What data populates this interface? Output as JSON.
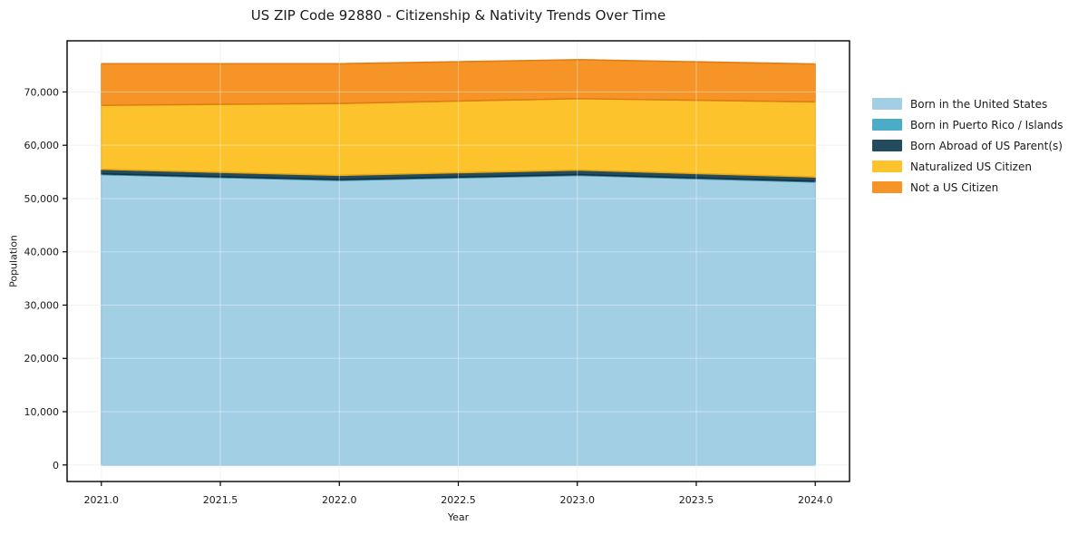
{
  "page": {
    "background": "#ffffff"
  },
  "chart_data": {
    "type": "area",
    "stacked": true,
    "title": "US ZIP Code 92880 - Citizenship & Nativity Trends Over Time",
    "xlabel": "Year",
    "ylabel": "Population",
    "x": [
      2021,
      2022,
      2023,
      2024
    ],
    "series": [
      {
        "name": "Born in the United States",
        "color": "#a3cfe4",
        "edge": "#7eb7d2",
        "values": [
          54500,
          53400,
          54350,
          53100
        ]
      },
      {
        "name": "Born in Puerto Rico / Islands",
        "color": "#4aacc6",
        "edge": "#3691ab",
        "values": [
          150,
          150,
          150,
          150
        ]
      },
      {
        "name": "Born Abroad of US Parent(s)",
        "color": "#234b5e",
        "edge": "#162f3c",
        "values": [
          850,
          800,
          850,
          800
        ]
      },
      {
        "name": "Naturalized US Citizen",
        "color": "#fcc32d",
        "edge": "#e6a914",
        "values": [
          12000,
          13500,
          13400,
          14100
        ]
      },
      {
        "name": "Not a US Citizen",
        "color": "#f79428",
        "edge": "#e07d12",
        "values": [
          7800,
          7450,
          7300,
          7100
        ]
      }
    ],
    "totals_by_year": [
      75300,
      75300,
      76050,
      75250
    ],
    "xticks": [
      2021.0,
      2021.5,
      2022.0,
      2022.5,
      2023.0,
      2023.5,
      2024.0
    ],
    "yticks": [
      0,
      10000,
      20000,
      30000,
      40000,
      50000,
      60000,
      70000
    ],
    "xtick_labels": [
      "2021.0",
      "2021.5",
      "2022.0",
      "2022.5",
      "2023.0",
      "2023.5",
      "2024.0"
    ],
    "ytick_labels": [
      "0",
      "10,000",
      "20,000",
      "30,000",
      "40,000",
      "50,000",
      "60,000",
      "70,000"
    ],
    "xlim": [
      2020.856,
      2024.144
    ],
    "ylim": [
      -3100,
      79600
    ],
    "grid": true,
    "legend_position": "right-outside",
    "colors": {
      "grid_below": "#ebebeb",
      "grid_above": "rgba(255,255,255,0.4)",
      "frame": "#000000",
      "text": "#1a1a1a"
    }
  }
}
